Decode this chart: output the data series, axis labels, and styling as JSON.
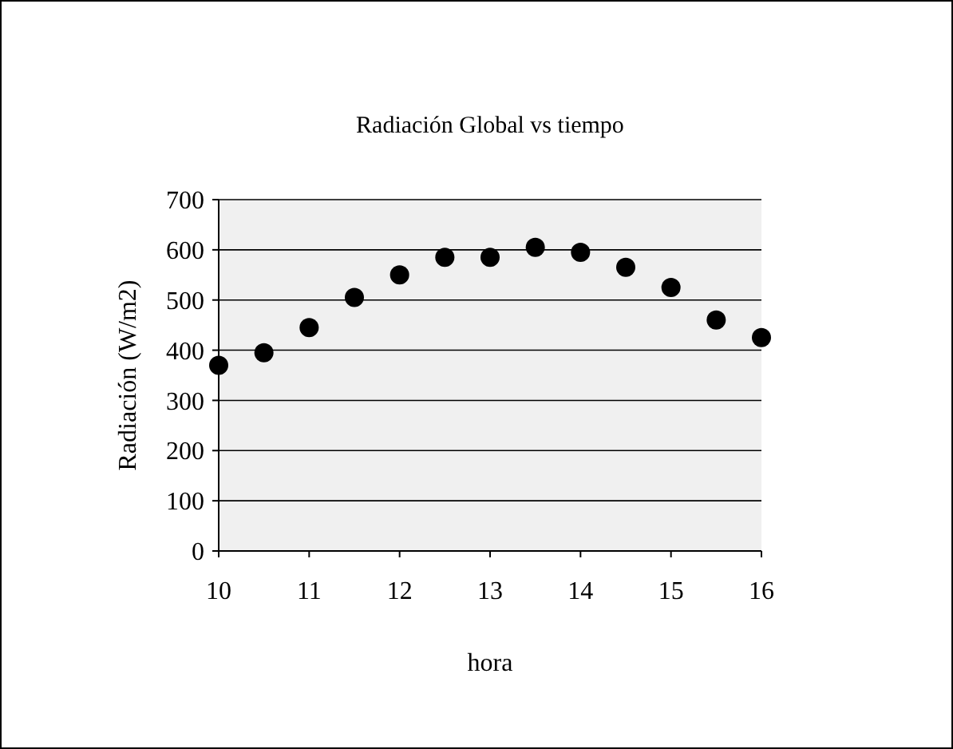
{
  "chart_data": {
    "type": "scatter",
    "title": "Radiación Global vs tiempo",
    "xlabel": "hora",
    "ylabel": "Radiación (W/m2)",
    "x": [
      10,
      10.5,
      11,
      11.5,
      12,
      12.5,
      13,
      13.5,
      14,
      14.5,
      15,
      15.5,
      16
    ],
    "series": [
      {
        "color": "#000000",
        "values": [
          370,
          395,
          445,
          505,
          550,
          585,
          585,
          605,
          595,
          565,
          525,
          460,
          425
        ]
      }
    ],
    "xlim": [
      10,
      16
    ],
    "xticks": [
      10,
      11,
      12,
      13,
      14,
      15,
      16
    ],
    "ylim": [
      0,
      700
    ],
    "yticks": [
      0,
      100,
      200,
      300,
      400,
      500,
      600,
      700
    ],
    "grid": "y",
    "marker": "circle"
  }
}
